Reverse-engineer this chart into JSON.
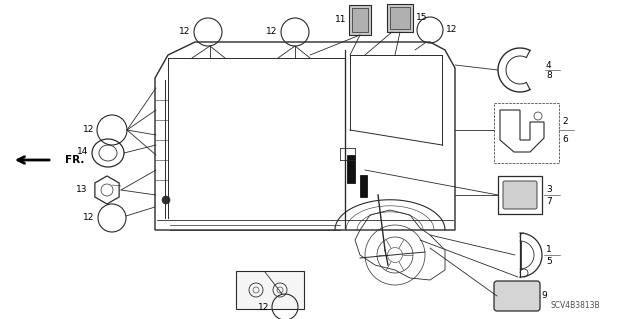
{
  "background_color": "#ffffff",
  "line_color": "#2a2a2a",
  "fig_width": 6.4,
  "fig_height": 3.19,
  "dpi": 100,
  "diagram_code": "SCV4B3813B"
}
